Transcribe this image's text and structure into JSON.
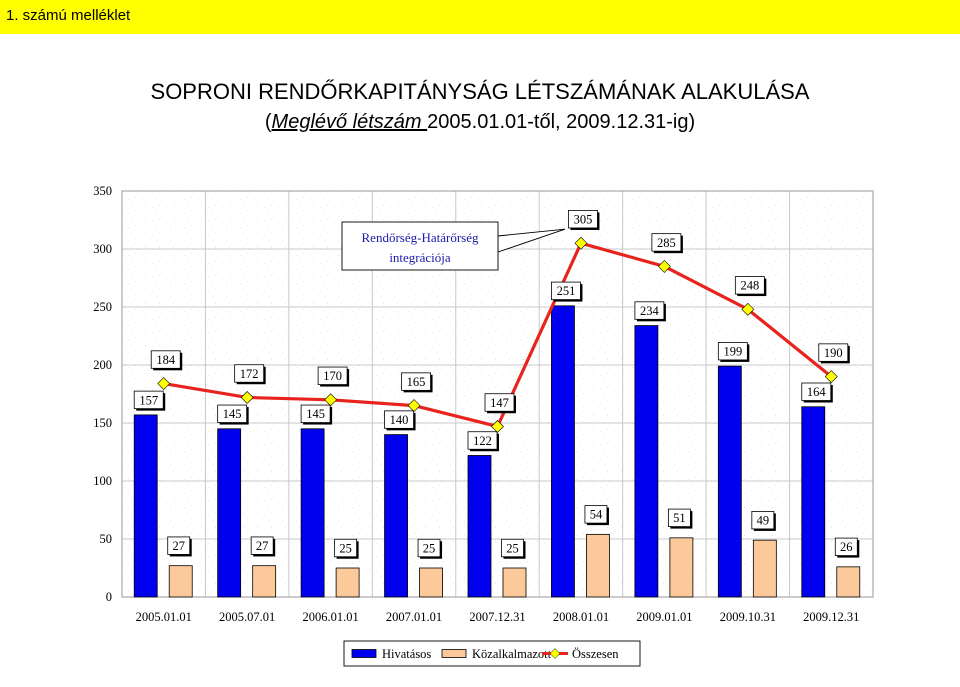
{
  "annex_label": "1. számú melléklet",
  "chart_data": {
    "type": "bar",
    "title": "SOPRONI RENDŐRKAPITÁNYSÁG LÉTSZÁMÁNAK ALAKULÁSA",
    "subtitle": {
      "open": "(",
      "link_text": "Meglévő létszám ",
      "rest": "2005.01.01-től, 2009.12.31-ig)"
    },
    "categories": [
      "2005.01.01",
      "2005.07.01",
      "2006.01.01",
      "2007.01.01",
      "2007.12.31",
      "2008.01.01",
      "2009.01.01",
      "2009.10.31",
      "2009.12.31"
    ],
    "series": [
      {
        "name": "Hivatásos",
        "type": "bar",
        "color": "#0000ee",
        "values": [
          157,
          145,
          145,
          140,
          122,
          251,
          234,
          199,
          164
        ]
      },
      {
        "name": "Közalkalmazott",
        "type": "bar",
        "color": "#fcc99a",
        "values": [
          27,
          27,
          25,
          25,
          25,
          54,
          51,
          49,
          26
        ]
      },
      {
        "name": "Összesen",
        "type": "line",
        "color": "#e8231e",
        "marker_color": "#ffff00",
        "values": [
          184,
          172,
          170,
          165,
          147,
          305,
          285,
          248,
          190
        ]
      }
    ],
    "ylim": [
      0,
      350
    ],
    "yticks": [
      0,
      50,
      100,
      150,
      200,
      250,
      300,
      350
    ],
    "grid": true,
    "legend": "bottom-center",
    "annotation": {
      "lines": [
        "Rendőrség-Határőrség",
        "integrációja"
      ],
      "points_to": "2008.01.01"
    }
  }
}
